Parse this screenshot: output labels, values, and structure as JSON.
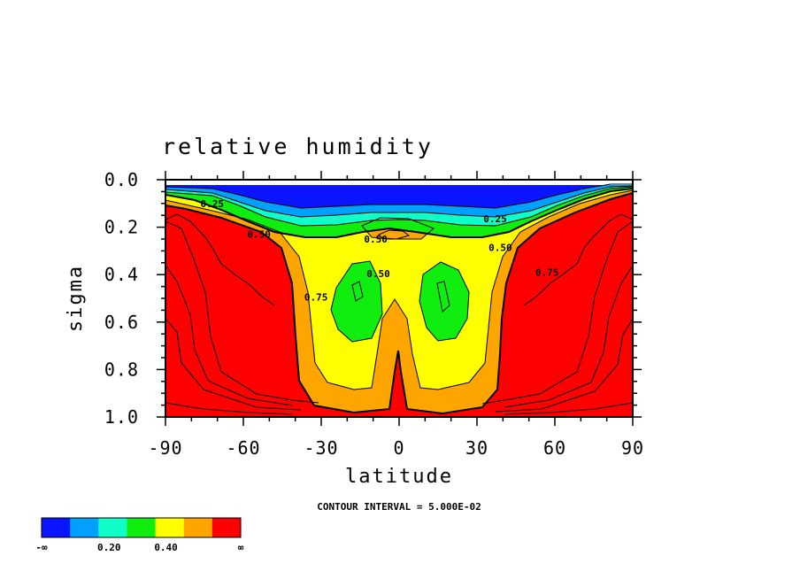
{
  "chart_data": {
    "type": "filled-contour",
    "title": "relative humidity",
    "xlabel": "latitude",
    "ylabel": "sigma",
    "xlim": [
      -90,
      90
    ],
    "ylim": [
      1.0,
      0.0
    ],
    "x_ticks": [
      "-90",
      "-60",
      "-30",
      "0",
      "30",
      "60",
      "90"
    ],
    "y_ticks": [
      "0.0",
      "0.2",
      "0.4",
      "0.6",
      "0.8",
      "1.0"
    ],
    "contour_interval_text": "CONTOUR INTERVAL = 5.000E-02",
    "contour_labels": [
      {
        "text": "0.25",
        "lat": -72,
        "sigma": 0.2
      },
      {
        "text": "0.25",
        "lat": 37,
        "sigma": 0.33
      },
      {
        "text": "0.50",
        "lat": -54,
        "sigma": 0.46
      },
      {
        "text": "0.50",
        "lat": -9,
        "sigma": 0.5
      },
      {
        "text": "0.50",
        "lat": 39,
        "sigma": 0.57
      },
      {
        "text": "0.50",
        "lat": -8,
        "sigma": 0.79
      },
      {
        "text": "0.75",
        "lat": 57,
        "sigma": 0.78
      },
      {
        "text": "0.75",
        "lat": -32,
        "sigma": 0.99
      }
    ],
    "colorbar": {
      "colors": [
        "#0a14ff",
        "#00a0ff",
        "#10ffc8",
        "#10ee10",
        "#ffff00",
        "#ffa500",
        "#ff0000"
      ],
      "labels": [
        "-∞",
        "0.20",
        "0.40",
        "∞"
      ]
    }
  }
}
